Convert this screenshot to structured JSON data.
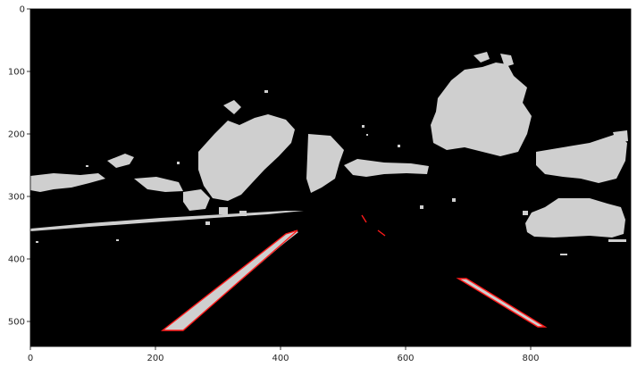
{
  "figure": {
    "type": "image-plot",
    "x_axis": {
      "min": 0,
      "max": 960,
      "ticks": [
        0,
        200,
        400,
        600,
        800
      ]
    },
    "y_axis": {
      "min": 0,
      "max": 540,
      "inverted": true,
      "ticks": [
        0,
        100,
        200,
        300,
        400,
        500
      ]
    },
    "colors": {
      "background": "#000000",
      "mask": "#cfcfcf",
      "lane_outline": "#ff1a1a"
    },
    "content": "binary edge mask of a road scene with detected lane line contours in red"
  }
}
